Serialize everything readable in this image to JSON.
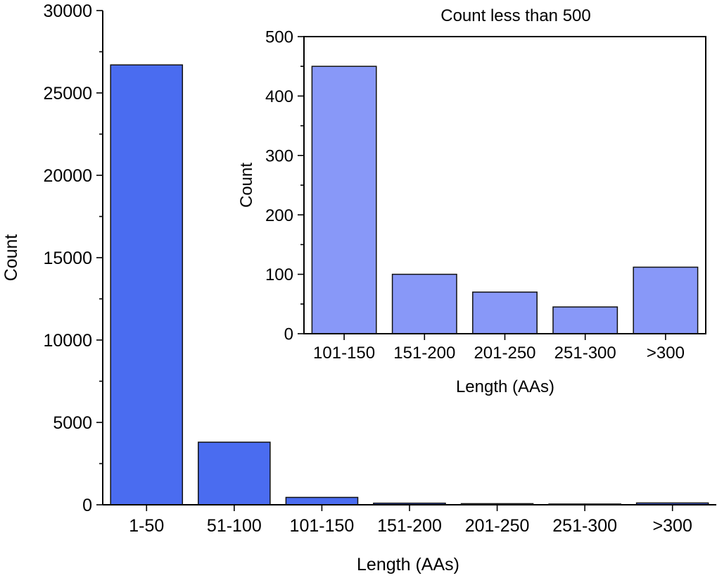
{
  "chart_data": [
    {
      "type": "bar",
      "title": "",
      "xlabel": "Length (AAs)",
      "ylabel": "Count",
      "categories": [
        "1-50",
        "51-100",
        "101-150",
        "151-200",
        "201-250",
        "251-300",
        ">300"
      ],
      "values": [
        26700,
        3800,
        450,
        100,
        70,
        45,
        112
      ],
      "ylim": [
        0,
        30000
      ],
      "yticks": [
        0,
        5000,
        10000,
        15000,
        20000,
        25000,
        30000
      ],
      "grid": false,
      "bar_color": "#4a6cf0"
    },
    {
      "type": "bar",
      "title": "Count less than 500",
      "xlabel": "Length (AAs)",
      "ylabel": "Count",
      "categories": [
        "101-150",
        "151-200",
        "201-250",
        "251-300",
        ">300"
      ],
      "values": [
        450,
        100,
        70,
        45,
        112
      ],
      "ylim": [
        0,
        500
      ],
      "yticks": [
        0,
        100,
        200,
        300,
        400,
        500
      ],
      "grid": false,
      "bar_color": "#8898f8"
    }
  ]
}
